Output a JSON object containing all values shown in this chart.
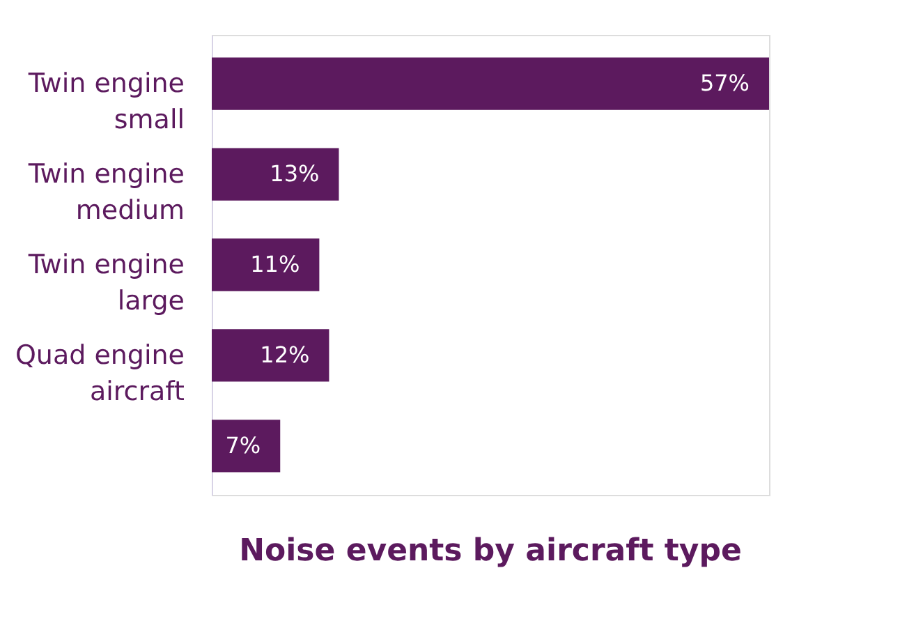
{
  "chart_data": {
    "type": "bar",
    "orientation": "horizontal",
    "title": "Noise events by aircraft type",
    "categories": [
      "Twin engine small",
      "Twin engine medium",
      "Twin engine large",
      "Quad engine aircraft",
      null
    ],
    "values": [
      57,
      13,
      11,
      12,
      7
    ],
    "value_labels": [
      "57%",
      "13%",
      "11%",
      "12%",
      "7%"
    ],
    "color": "#5c1a5e"
  }
}
